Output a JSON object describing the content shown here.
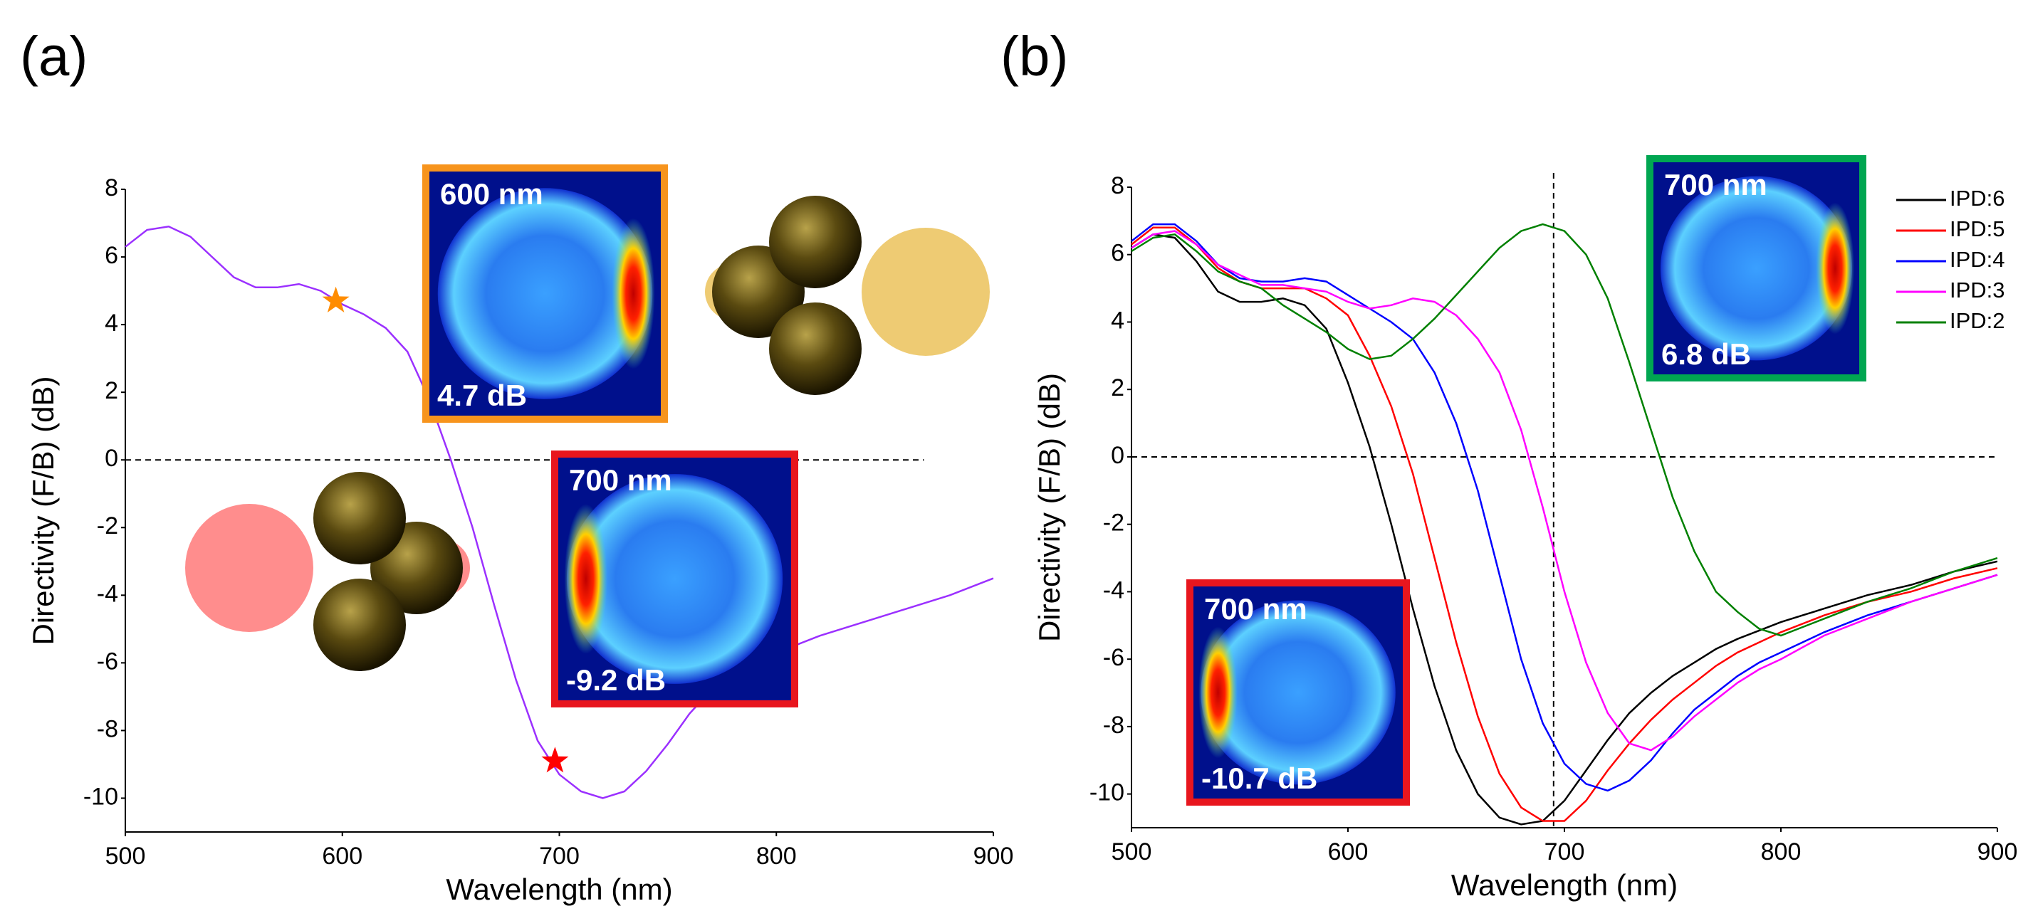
{
  "chart_data": [
    {
      "type": "line",
      "panel": "(a)",
      "x_label": "Wavelength (nm)",
      "y_label": "Directivity (F/B) (dB)",
      "x": [
        500,
        510,
        520,
        530,
        540,
        550,
        560,
        570,
        580,
        590,
        600,
        610,
        620,
        630,
        640,
        650,
        660,
        670,
        680,
        690,
        700,
        710,
        720,
        730,
        740,
        750,
        760,
        770,
        780,
        790,
        800,
        820,
        840,
        860,
        880,
        900
      ],
      "values": [
        6.3,
        6.8,
        6.9,
        6.6,
        6.0,
        5.4,
        5.1,
        5.1,
        5.2,
        5.0,
        4.6,
        4.3,
        3.9,
        3.2,
        1.8,
        0,
        -2,
        -4.3,
        -6.5,
        -8.3,
        -9.3,
        -9.8,
        -10,
        -9.8,
        -9.2,
        -8.4,
        -7.5,
        -6.8,
        -6.3,
        -6.0,
        -5.7,
        -5.2,
        -4.8,
        -4.4,
        -4.0,
        -3.5
      ],
      "color": "#9b30ff",
      "xlim": [
        500,
        900
      ],
      "ylim": [
        -11,
        8
      ],
      "xticks": [
        500,
        600,
        700,
        800,
        900
      ],
      "yticks": [
        -10,
        -8,
        -6,
        -4,
        -2,
        0,
        2,
        4,
        6,
        8
      ],
      "hlines": [
        0
      ],
      "markers": [
        {
          "x": 597,
          "y": 4.7,
          "color": "#ff8c00"
        },
        {
          "x": 698,
          "y": -8.9,
          "color": "#ff0000"
        }
      ],
      "insets": [
        {
          "title": "600 nm",
          "value_label": "4.7 dB",
          "color": "#f7941d"
        },
        {
          "title": "700 nm",
          "value_label": "-9.2 dB",
          "color": "#e8161e"
        }
      ]
    },
    {
      "type": "line",
      "panel": "(b)",
      "x_label": "Wavelength (nm)",
      "y_label": "Directivity (F/B) (dB)",
      "x": [
        500,
        510,
        520,
        530,
        540,
        550,
        560,
        570,
        580,
        590,
        600,
        610,
        620,
        630,
        640,
        650,
        660,
        670,
        680,
        690,
        700,
        710,
        720,
        730,
        740,
        750,
        760,
        770,
        780,
        790,
        800,
        820,
        840,
        860,
        880,
        900
      ],
      "series": [
        {
          "name": "IPD:6",
          "color": "#000000",
          "values": [
            6.2,
            6.6,
            6.5,
            5.8,
            4.9,
            4.6,
            4.6,
            4.7,
            4.5,
            3.8,
            2.2,
            0.3,
            -2,
            -4.5,
            -6.8,
            -8.7,
            -10,
            -10.7,
            -10.9,
            -10.8,
            -10.2,
            -9.3,
            -8.4,
            -7.6,
            -7.0,
            -6.5,
            -6.1,
            -5.7,
            -5.4,
            -5.15,
            -4.9,
            -4.5,
            -4.1,
            -3.8,
            -3.4,
            -3.1
          ]
        },
        {
          "name": "IPD:5",
          "color": "#ff0000",
          "values": [
            6.3,
            6.8,
            6.8,
            6.3,
            5.6,
            5.2,
            5.0,
            5.0,
            5.0,
            4.7,
            4.2,
            3.0,
            1.5,
            -0.5,
            -3,
            -5.5,
            -7.7,
            -9.4,
            -10.4,
            -10.8,
            -10.8,
            -10.2,
            -9.3,
            -8.5,
            -7.8,
            -7.2,
            -6.7,
            -6.2,
            -5.8,
            -5.5,
            -5.2,
            -4.7,
            -4.3,
            -4.0,
            -3.6,
            -3.3
          ]
        },
        {
          "name": "IPD:4",
          "color": "#0000ff",
          "values": [
            6.4,
            6.9,
            6.9,
            6.4,
            5.7,
            5.3,
            5.2,
            5.2,
            5.3,
            5.2,
            4.8,
            4.4,
            4.0,
            3.5,
            2.5,
            1.0,
            -1,
            -3.5,
            -6,
            -7.9,
            -9.1,
            -9.7,
            -9.9,
            -9.6,
            -9.0,
            -8.2,
            -7.5,
            -7.0,
            -6.5,
            -6.1,
            -5.8,
            -5.2,
            -4.7,
            -4.3,
            -3.9,
            -3.5
          ]
        },
        {
          "name": "IPD:3",
          "color": "#ff00ff",
          "values": [
            6.2,
            6.6,
            6.7,
            6.3,
            5.7,
            5.4,
            5.1,
            5.1,
            5.0,
            4.9,
            4.6,
            4.4,
            4.5,
            4.7,
            4.6,
            4.2,
            3.5,
            2.5,
            0.8,
            -1.5,
            -4,
            -6.1,
            -7.6,
            -8.5,
            -8.7,
            -8.3,
            -7.7,
            -7.2,
            -6.7,
            -6.3,
            -6.0,
            -5.3,
            -4.8,
            -4.3,
            -3.9,
            -3.5
          ]
        },
        {
          "name": "IPD:2",
          "color": "#008000",
          "values": [
            6.1,
            6.5,
            6.6,
            6.1,
            5.5,
            5.2,
            5.0,
            4.5,
            4.1,
            3.7,
            3.2,
            2.9,
            3.0,
            3.5,
            4.1,
            4.8,
            5.5,
            6.2,
            6.7,
            6.9,
            6.7,
            6.0,
            4.7,
            2.8,
            0.8,
            -1.2,
            -2.8,
            -4.0,
            -4.6,
            -5.1,
            -5.3,
            -4.8,
            -4.3,
            -3.9,
            -3.4,
            -3.0
          ]
        }
      ],
      "xlim": [
        500,
        900
      ],
      "ylim": [
        -11,
        8
      ],
      "xticks": [
        500,
        600,
        700,
        800,
        900
      ],
      "yticks": [
        -10,
        -8,
        -6,
        -4,
        -2,
        0,
        2,
        4,
        6,
        8
      ],
      "hlines": [
        0
      ],
      "vlines": [
        695
      ],
      "insets": [
        {
          "title": "700 nm",
          "value_label": "6.8 dB",
          "color": "#00a651"
        },
        {
          "title": "700 nm",
          "value_label": "-10.7 dB",
          "color": "#e8161e"
        }
      ]
    }
  ]
}
